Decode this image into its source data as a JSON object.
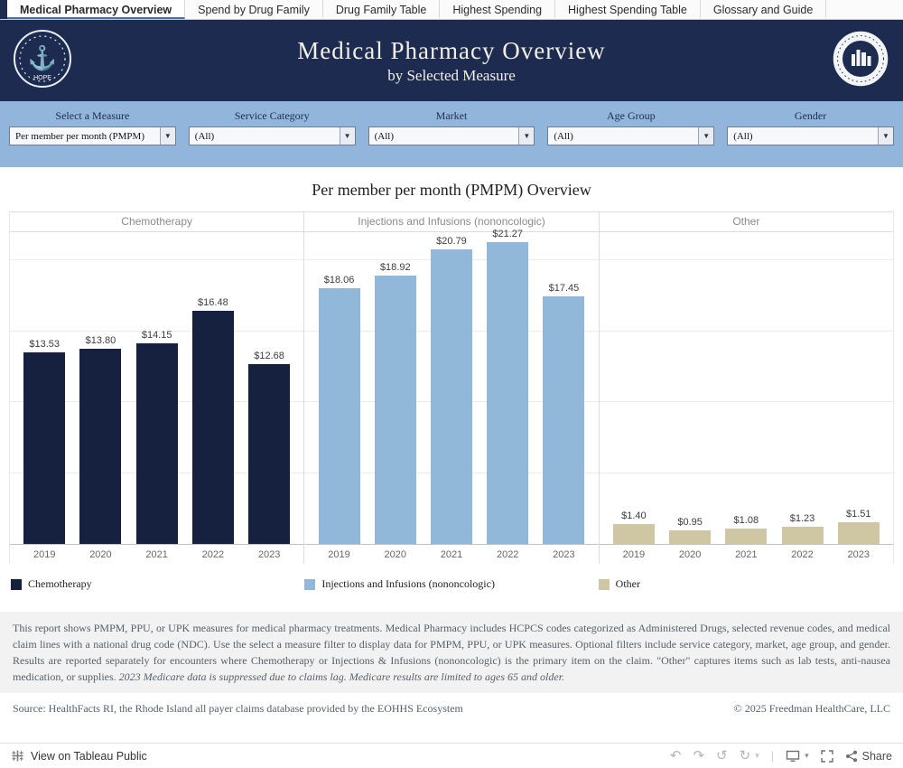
{
  "tabs": [
    {
      "label": "Medical Pharmacy Overview",
      "active": true
    },
    {
      "label": "Spend by Drug Family",
      "active": false
    },
    {
      "label": "Drug Family Table",
      "active": false
    },
    {
      "label": "Highest Spending",
      "active": false
    },
    {
      "label": "Highest Spending Table",
      "active": false
    },
    {
      "label": "Glossary and Guide",
      "active": false
    }
  ],
  "header": {
    "title": "Medical Pharmacy Overview",
    "subtitle": "by Selected Measure"
  },
  "logos": {
    "left": "rhode-island-hope-anchor-seal",
    "left_motto": "HOPE",
    "right": "rhode-island-ecosystem-seal"
  },
  "filters": [
    {
      "label": "Select a Measure",
      "value": "Per member per month (PMPM)"
    },
    {
      "label": "Service Category",
      "value": "(All)"
    },
    {
      "label": "Market",
      "value": "(All)"
    },
    {
      "label": "Age Group",
      "value": "(All)"
    },
    {
      "label": "Gender",
      "value": "(All)"
    }
  ],
  "chart_data": {
    "type": "bar",
    "title": "Per member per month (PMPM) Overview",
    "categories": [
      "2019",
      "2020",
      "2021",
      "2022",
      "2023"
    ],
    "series": [
      {
        "name": "Chemotherapy",
        "color": "#16213f",
        "values": [
          13.53,
          13.8,
          14.15,
          16.48,
          12.68
        ]
      },
      {
        "name": "Injections and Infusions (nononcologic)",
        "color": "#92b8d9",
        "values": [
          18.06,
          18.92,
          20.79,
          21.27,
          17.45
        ]
      },
      {
        "name": "Other",
        "color": "#cfc6a4",
        "values": [
          1.4,
          0.95,
          1.08,
          1.23,
          1.51
        ]
      }
    ],
    "ylim": [
      0,
      22
    ],
    "value_prefix": "$",
    "grid_step": 5,
    "legend_position": "bottom"
  },
  "footnote": {
    "description": "This report shows PMPM, PPU, or UPK measures for medical pharmacy treatments. Medical Pharmacy includes HCPCS codes categorized as Administered Drugs, selected revenue codes, and medical claim lines with a national drug code (NDC).  Use the select a measure filter to display data for PMPM, PPU, or UPK measures. Optional filters include service category, market, age group, and gender. Results are reported separately for encounters where Chemotherapy or Injections & Infusions (nononcologic) is the primary item on the claim. \"Other\" captures items such as lab tests, anti-nausea medication, or supplies. ",
    "italic_note": "2023  Medicare data is suppressed due to claims lag. Medicare results are limited to ages 65 and older."
  },
  "source": {
    "text": "Source: HealthFacts RI, the Rhode Island all payer claims database provided by the EOHHS Ecosystem",
    "copyright": "© 2025 Freedman HealthCare, LLC"
  },
  "toolbar": {
    "view_label": "View on Tableau Public",
    "share_label": "Share"
  }
}
